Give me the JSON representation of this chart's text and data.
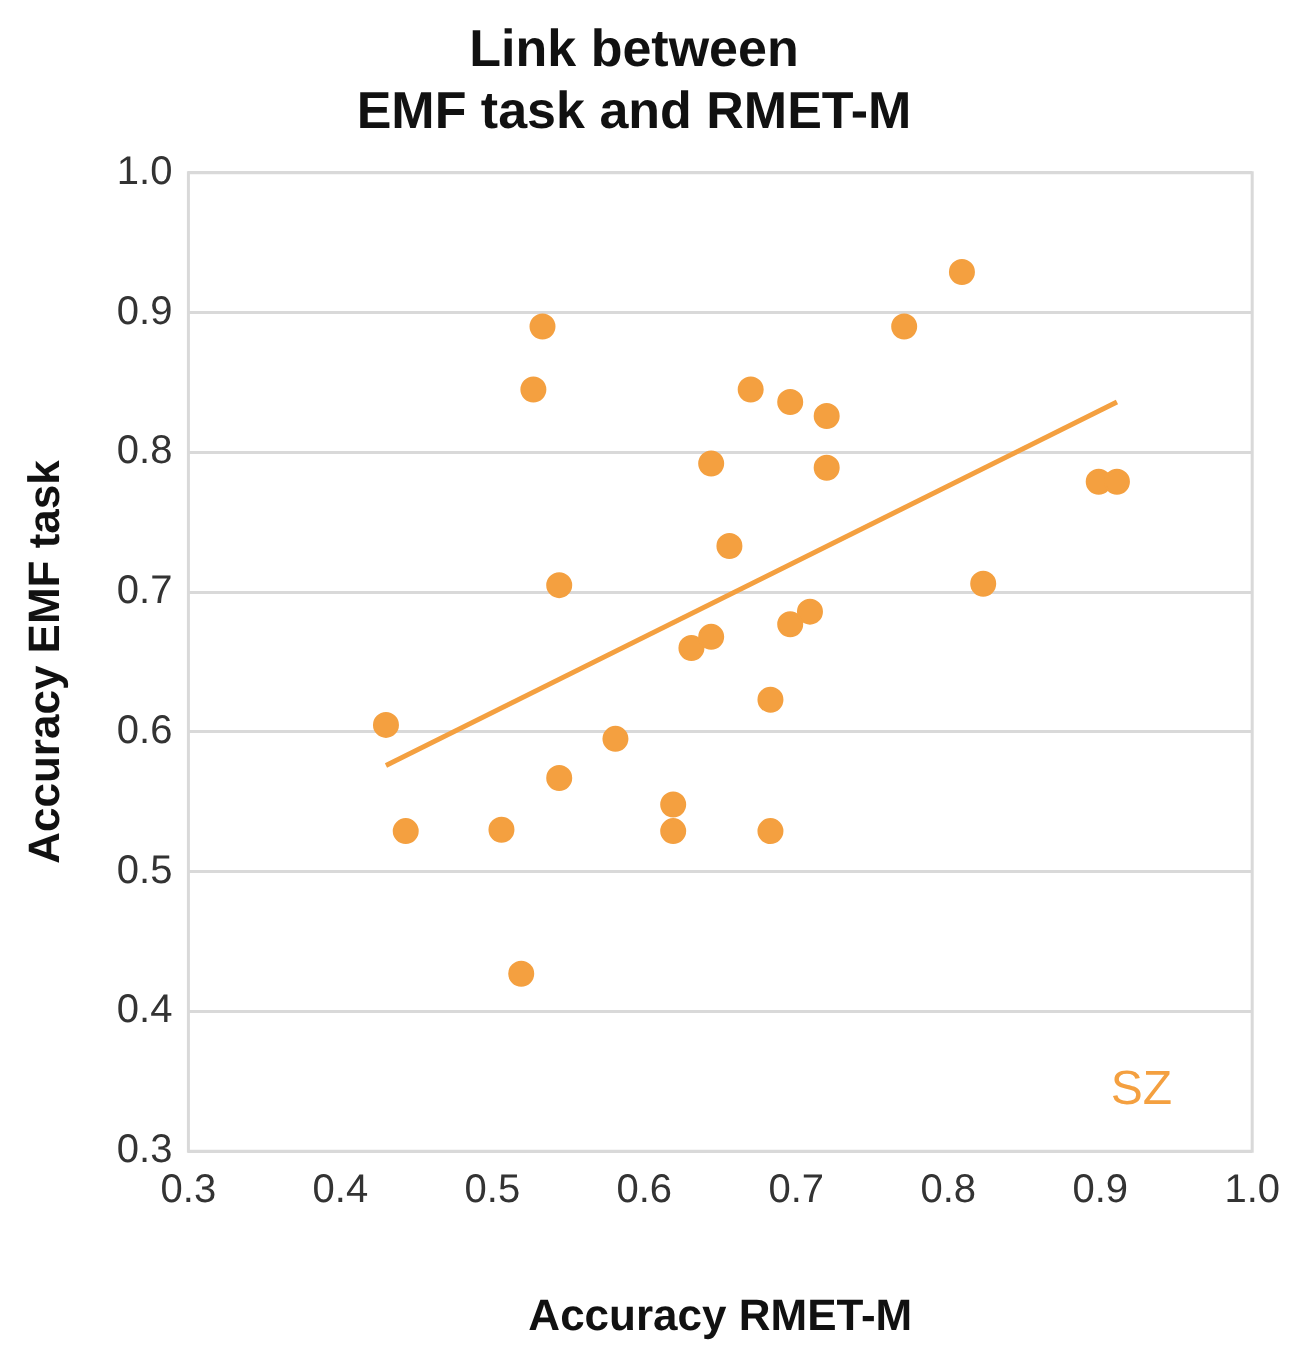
{
  "chart_data": {
    "type": "scatter",
    "title": "Link between\nEMF task and RMET-M",
    "xlabel": "Accuracy RMET-M",
    "ylabel": "Accuracy EMF task",
    "xlim": [
      0.3,
      1.0
    ],
    "xticks": [
      0.3,
      0.4,
      0.5,
      0.6,
      0.7,
      0.8,
      0.9,
      {
        "value": 1,
        "label": "1.0"
      }
    ],
    "ylim": [
      0.3,
      1.0
    ],
    "yticks": [
      0.3,
      0.4,
      0.5,
      0.6,
      0.7,
      0.8,
      0.9,
      {
        "value": 1,
        "label": "1.0"
      }
    ],
    "grid": "y",
    "legend": false,
    "annotations": [
      "SZ"
    ],
    "series": [
      {
        "type": "scatter",
        "marker": "circle",
        "color": "#f4a040",
        "x": [
          0.43,
          0.443,
          0.506,
          0.519,
          0.527,
          0.533,
          0.544,
          0.544,
          0.581,
          0.619,
          0.619,
          0.631,
          0.644,
          0.644,
          0.656,
          0.67,
          0.683,
          0.683,
          0.696,
          0.696,
          0.709,
          0.72,
          0.72,
          0.771,
          0.809,
          0.823,
          0.899,
          0.911
        ],
        "values": [
          0.605,
          0.529,
          0.53,
          0.427,
          0.845,
          0.89,
          0.705,
          0.567,
          0.595,
          0.548,
          0.529,
          0.66,
          0.668,
          0.792,
          0.733,
          0.845,
          0.529,
          0.623,
          0.836,
          0.677,
          0.686,
          0.826,
          0.789,
          0.89,
          0.929,
          0.706,
          0.779,
          0.779
        ]
      },
      {
        "type": "line",
        "marker": "none",
        "color": "#f4a040",
        "x": [
          0.43,
          0.911
        ],
        "values": [
          0.576,
          0.836
        ]
      }
    ]
  }
}
